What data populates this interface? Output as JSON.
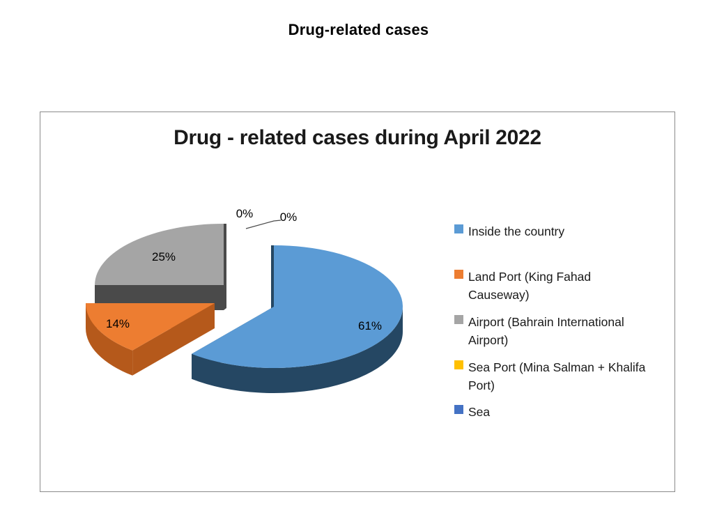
{
  "page": {
    "title": "Drug-related cases"
  },
  "chart": {
    "title": "Drug - related cases during April 2022",
    "frame_border_color": "#8A8A8A"
  },
  "chart_data": {
    "type": "pie",
    "style": "3d-exploded",
    "title": "Drug - related cases during April 2022",
    "unit": "%",
    "legend_position": "right",
    "grid": false,
    "categories": [
      "Inside the country",
      "Land Port (King Fahad Causeway)",
      "Airport (Bahrain International Airport)",
      "Sea Port (Mina Salman + Khalifa Port)",
      "Sea"
    ],
    "values": [
      61,
      14,
      25,
      0,
      0
    ],
    "data_labels": [
      "61%",
      "14%",
      "25%",
      "0%",
      "0%"
    ],
    "colors": [
      "#5B9BD5",
      "#ED7D31",
      "#A5A5A5",
      "#FFC000",
      "#4472C4"
    ],
    "side_colors": [
      "#254763",
      "#B5591B",
      "#4A4A4A",
      "#B38600",
      "#2F4F88"
    ]
  },
  "legend": {
    "items": [
      {
        "label": "Inside the country",
        "color": "#5B9BD5"
      },
      {
        "label": "Land Port (King Fahad\nCauseway)",
        "color": "#ED7D31"
      },
      {
        "label": "Airport (Bahrain International\nAirport)",
        "color": "#A5A5A5"
      },
      {
        "label": "Sea Port (Mina Salman + Khalifa\nPort)",
        "color": "#FFC000"
      },
      {
        "label": "Sea",
        "color": "#4472C4"
      }
    ]
  }
}
